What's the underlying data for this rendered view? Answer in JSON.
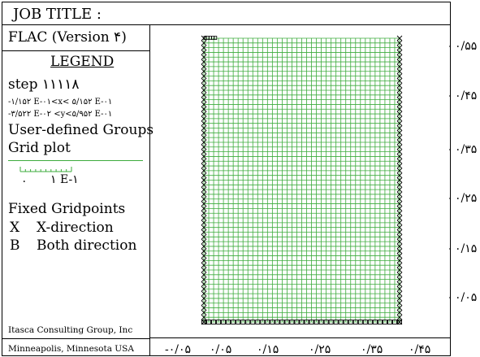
{
  "header": {
    "job_title_label": "JOB TITLE :"
  },
  "legend_panel": {
    "program": "FLAC (Version ۴)",
    "legend_title": "LEGEND",
    "step": "step  ۱۱۱۱۸",
    "x_range": "-۱/۱۵۲ E-۰۱<x< ۵/۱۵۲ E-۰۱",
    "y_range": "-۳/۵۲۲ E-۰۲ <y<۵/۹۵۲ E-۰۱",
    "groups_label": "User-defined Groups",
    "grid_plot_label": "Grid plot",
    "grid_line_color": "#3cab3c",
    "scale_left": "۰",
    "scale_right": "۱ E-۱",
    "fixed_title": "Fixed Gridpoints",
    "fixed_items": [
      {
        "symbol": "X",
        "label": "X-direction"
      },
      {
        "symbol": "B",
        "label": "Both direction"
      }
    ],
    "company": "Itasca Consulting Group, Inc",
    "location": "Minneapolis, Minnesota USA"
  },
  "axes": {
    "y_ticks": [
      "۰/۵۵",
      "۰/۴۵",
      "۰/۳۵",
      "۰/۲۵",
      "۰/۱۵",
      "۰/۰۵"
    ],
    "x_ticks": [
      "-۰/۰۵",
      "۰/۰۵",
      "۰/۱۵",
      "۰/۲۵",
      "۰/۳۵",
      "۰/۴۵"
    ]
  }
}
